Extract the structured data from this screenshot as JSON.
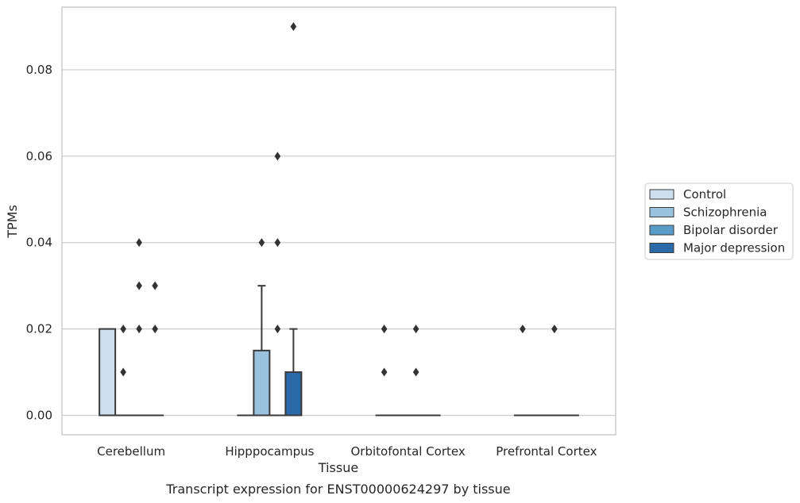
{
  "caption": "Transcript expression for ENST00000624297 by tissue",
  "chart_data": {
    "type": "box",
    "xlabel": "Tissue",
    "ylabel": "TPMs",
    "ylim": [
      -0.0045,
      0.0945
    ],
    "yticks": [
      0.0,
      0.02,
      0.04,
      0.06,
      0.08
    ],
    "ytick_labels": [
      "0.00",
      "0.02",
      "0.04",
      "0.06",
      "0.08"
    ],
    "grid": "horizontal",
    "legend_position": "center-right",
    "categories": [
      "Cerebellum",
      "Hipppocampus",
      "Orbitofontal Cortex",
      "Prefrontal Cortex"
    ],
    "series": [
      {
        "name": "Control",
        "color": "#cddfef",
        "boxes": [
          {
            "q1": 0.0,
            "median": 0.0,
            "q3": 0.02,
            "whisker_low": 0.0,
            "whisker_high": 0.02,
            "outliers": []
          },
          {
            "q1": 0.0,
            "median": 0.0,
            "q3": 0.0,
            "whisker_low": 0.0,
            "whisker_high": 0.0,
            "outliers": []
          },
          {
            "q1": 0.0,
            "median": 0.0,
            "q3": 0.0,
            "whisker_low": 0.0,
            "whisker_high": 0.0,
            "outliers": [
              0.01,
              0.02
            ]
          },
          {
            "q1": 0.0,
            "median": 0.0,
            "q3": 0.0,
            "whisker_low": 0.0,
            "whisker_high": 0.0,
            "outliers": [
              0.02
            ]
          }
        ]
      },
      {
        "name": "Schizophrenia",
        "color": "#98c2dd",
        "boxes": [
          {
            "q1": 0.0,
            "median": 0.0,
            "q3": 0.0,
            "whisker_low": 0.0,
            "whisker_high": 0.0,
            "outliers": [
              0.01,
              0.02
            ]
          },
          {
            "q1": 0.0,
            "median": 0.0,
            "q3": 0.015,
            "whisker_low": 0.0,
            "whisker_high": 0.03,
            "outliers": [
              0.04
            ]
          },
          {
            "q1": 0.0,
            "median": 0.0,
            "q3": 0.0,
            "whisker_low": 0.0,
            "whisker_high": 0.0,
            "outliers": []
          },
          {
            "q1": 0.0,
            "median": 0.0,
            "q3": 0.0,
            "whisker_low": 0.0,
            "whisker_high": 0.0,
            "outliers": []
          }
        ]
      },
      {
        "name": "Bipolar disorder",
        "color": "#5a9cc9",
        "boxes": [
          {
            "q1": 0.0,
            "median": 0.0,
            "q3": 0.0,
            "whisker_low": 0.0,
            "whisker_high": 0.0,
            "outliers": [
              0.02,
              0.03,
              0.04
            ]
          },
          {
            "q1": 0.0,
            "median": 0.0,
            "q3": 0.0,
            "whisker_low": 0.0,
            "whisker_high": 0.0,
            "outliers": [
              0.02,
              0.04,
              0.06
            ]
          },
          {
            "q1": 0.0,
            "median": 0.0,
            "q3": 0.0,
            "whisker_low": 0.0,
            "whisker_high": 0.0,
            "outliers": [
              0.01,
              0.02
            ]
          },
          {
            "q1": 0.0,
            "median": 0.0,
            "q3": 0.0,
            "whisker_low": 0.0,
            "whisker_high": 0.0,
            "outliers": [
              0.02
            ]
          }
        ]
      },
      {
        "name": "Major depression",
        "color": "#2a6aa8",
        "boxes": [
          {
            "q1": 0.0,
            "median": 0.0,
            "q3": 0.0,
            "whisker_low": 0.0,
            "whisker_high": 0.0,
            "outliers": [
              0.02,
              0.03
            ]
          },
          {
            "q1": 0.0,
            "median": 0.0,
            "q3": 0.01,
            "whisker_low": 0.0,
            "whisker_high": 0.02,
            "outliers": [
              0.09
            ]
          },
          {
            "q1": 0.0,
            "median": 0.0,
            "q3": 0.0,
            "whisker_low": 0.0,
            "whisker_high": 0.0,
            "outliers": []
          },
          {
            "q1": 0.0,
            "median": 0.0,
            "q3": 0.0,
            "whisker_low": 0.0,
            "whisker_high": 0.0,
            "outliers": []
          }
        ]
      }
    ]
  },
  "colors": {
    "grid": "#cccccc",
    "frame": "#cccccc",
    "box_edge": "#3a3a3a",
    "text": "#262626"
  }
}
